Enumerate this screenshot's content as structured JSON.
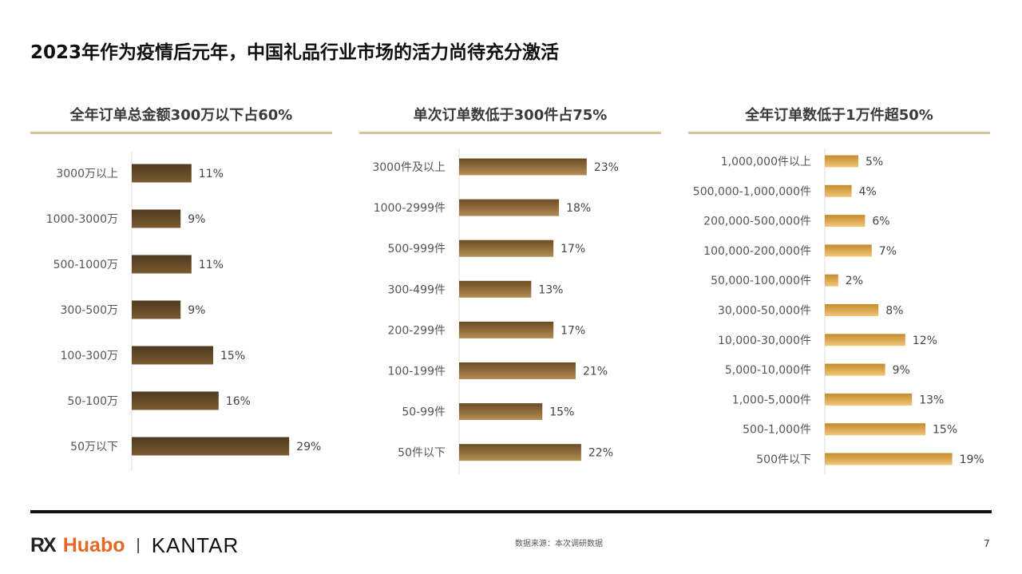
{
  "title": "2023年作为疫情后元年，中国礼品行业市场的活力尚待充分激活",
  "footer": {
    "logo_rx": "RX",
    "logo_huabo": "Huabo",
    "logo_separator": "|",
    "logo_kantar": "KANTAR",
    "source": "数据来源：本次调研数据",
    "page_number": "7"
  },
  "colors": {
    "chart1": [
      "#4e3a1f",
      "#7a5a31"
    ],
    "chart2": [
      "#6a4c24",
      "#b68d55"
    ],
    "chart3": [
      "#c48b2c",
      "#f2c678"
    ],
    "header_underline": "#d8c49b"
  },
  "chart_data": [
    {
      "type": "bar",
      "orientation": "horizontal",
      "title": "全年订单总金额300万以下占60%",
      "categories": [
        "3000万以上",
        "1000-3000万",
        "500-1000万",
        "300-500万",
        "100-300万",
        "50-100万",
        "50万以下"
      ],
      "values": [
        11,
        9,
        11,
        9,
        15,
        16,
        29
      ],
      "labels": [
        "11%",
        "9%",
        "11%",
        "9%",
        "15%",
        "16%",
        "29%"
      ],
      "xlim": [
        0,
        30
      ],
      "grid": false
    },
    {
      "type": "bar",
      "orientation": "horizontal",
      "title": "单次订单数低于300件占75%",
      "categories": [
        "3000件及以上",
        "1000-2999件",
        "500-999件",
        "300-499件",
        "200-299件",
        "100-199件",
        "50-99件",
        "50件以下"
      ],
      "values": [
        23,
        18,
        17,
        13,
        17,
        21,
        15,
        22
      ],
      "labels": [
        "23%",
        "18%",
        "17%",
        "13%",
        "17%",
        "21%",
        "15%",
        "22%"
      ],
      "xlim": [
        0,
        24
      ],
      "grid": false
    },
    {
      "type": "bar",
      "orientation": "horizontal",
      "title": "全年订单数低于1万件超50%",
      "categories": [
        "1,000,000件以上",
        "500,000-1,000,000件",
        "200,000-500,000件",
        "100,000-200,000件",
        "50,000-100,000件",
        "30,000-50,000件",
        "10,000-30,000件",
        "5,000-10,000件",
        "1,000-5,000件",
        "500-1,000件",
        "500件以下"
      ],
      "values": [
        5,
        4,
        6,
        7,
        2,
        8,
        12,
        9,
        13,
        15,
        19
      ],
      "labels": [
        "5%",
        "4%",
        "6%",
        "7%",
        "2%",
        "8%",
        "12%",
        "9%",
        "13%",
        "15%",
        "19%"
      ],
      "xlim": [
        0,
        20
      ],
      "grid": false
    }
  ]
}
